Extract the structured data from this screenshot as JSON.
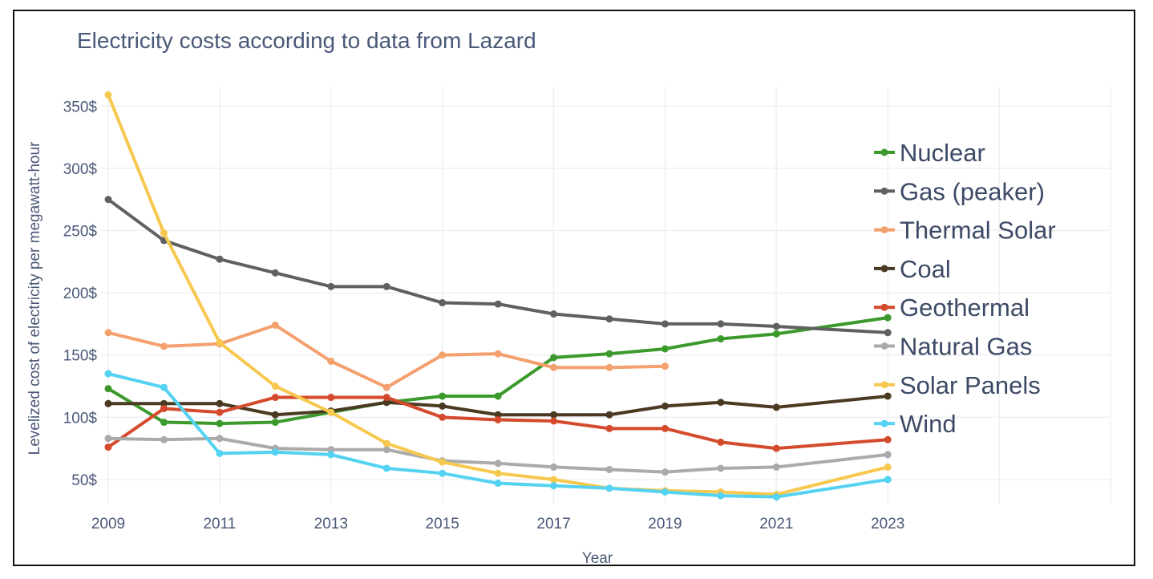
{
  "chart_data": {
    "type": "line",
    "title": "Electricity costs according to data from Lazard",
    "xlabel": "Year",
    "ylabel": "Levelized cost of electricity per megawatt-hour",
    "x": [
      2009,
      2010,
      2011,
      2012,
      2013,
      2014,
      2015,
      2016,
      2017,
      2018,
      2019,
      2020,
      2021,
      2023
    ],
    "x_ticks": [
      2009,
      2011,
      2013,
      2015,
      2017,
      2019,
      2021,
      2023
    ],
    "y_ticks": [
      50,
      100,
      150,
      200,
      250,
      300,
      350
    ],
    "y_tick_labels": [
      "50$",
      "100$",
      "150$",
      "200$",
      "250$",
      "300$",
      "350$"
    ],
    "xlim": [
      2009,
      2027
    ],
    "ylim": [
      30,
      365
    ],
    "grid": true,
    "legend_position": "right",
    "series": [
      {
        "name": "Nuclear",
        "color": "#3c9a2c",
        "values": [
          123,
          96,
          95,
          96,
          104,
          112,
          117,
          117,
          148,
          151,
          155,
          163,
          167,
          180
        ]
      },
      {
        "name": "Gas (peaker)",
        "color": "#606060",
        "values": [
          275,
          242,
          227,
          216,
          205,
          205,
          192,
          191,
          183,
          179,
          175,
          175,
          173,
          168
        ]
      },
      {
        "name": "Thermal Solar",
        "color": "#f4a06e",
        "values": [
          168,
          157,
          159,
          174,
          145,
          124,
          150,
          151,
          140,
          140,
          141,
          null,
          null,
          null
        ]
      },
      {
        "name": "Coal",
        "color": "#4a3a22",
        "values": [
          111,
          111,
          111,
          102,
          105,
          112,
          109,
          102,
          102,
          102,
          109,
          112,
          108,
          117
        ]
      },
      {
        "name": "Geothermal",
        "color": "#d44a2c",
        "values": [
          76,
          107,
          104,
          116,
          116,
          116,
          100,
          98,
          97,
          91,
          91,
          80,
          75,
          82
        ]
      },
      {
        "name": "Natural Gas",
        "color": "#aaaaaa",
        "values": [
          83,
          82,
          83,
          75,
          74,
          74,
          65,
          63,
          60,
          58,
          56,
          59,
          60,
          70
        ]
      },
      {
        "name": "Solar Panels",
        "color": "#f7c84e",
        "values": [
          359,
          248,
          160,
          125,
          104,
          79,
          64,
          55,
          50,
          43,
          41,
          40,
          38,
          60
        ]
      },
      {
        "name": "Wind",
        "color": "#54d2f2",
        "values": [
          135,
          124,
          71,
          72,
          70,
          59,
          55,
          47,
          45,
          43,
          40,
          37,
          36,
          50
        ]
      }
    ]
  }
}
